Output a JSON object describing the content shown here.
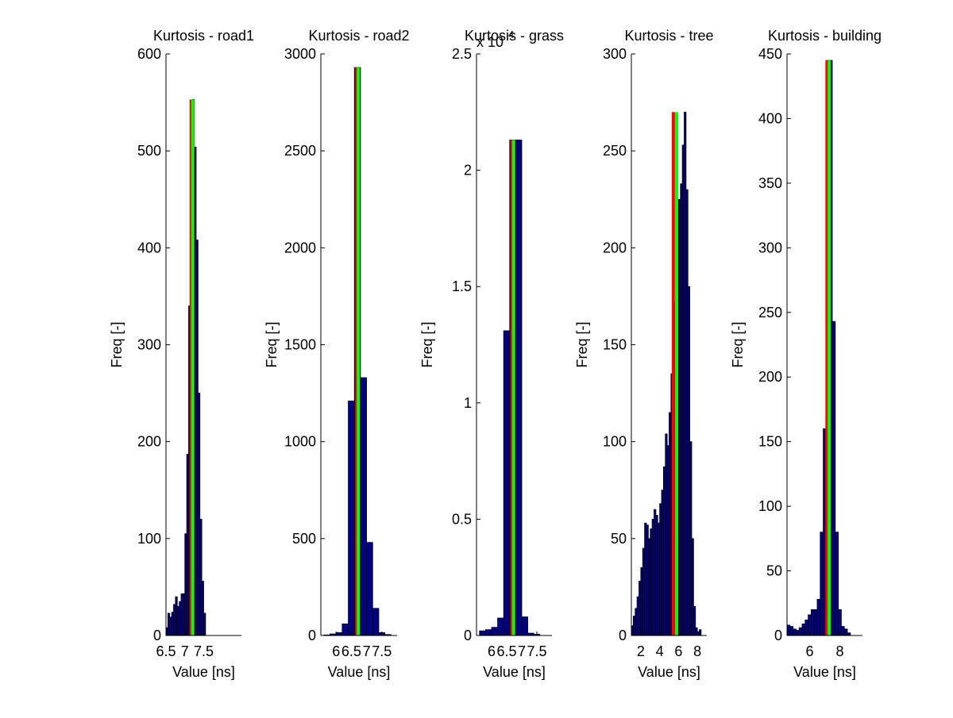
{
  "figure": {
    "background": "#ffffff"
  },
  "colors": {
    "bar": "#000080",
    "bar_edge": "#000000",
    "median_line": "#ff0000",
    "mean_line": "#00ff00"
  },
  "chart_data": [
    {
      "type": "bar",
      "title": "Kurtosis - road1",
      "xlabel": "Value [ns]",
      "ylabel": "Freq [-]",
      "xlim": [
        6.5,
        8.5
      ],
      "ylim": [
        0,
        600
      ],
      "xticks": [
        6.5,
        7,
        7.5
      ],
      "xtick_labels": [
        "6.5",
        "7",
        "7.5"
      ],
      "yticks": [
        0,
        100,
        200,
        300,
        400,
        500,
        600
      ],
      "ytick_labels": [
        "0",
        "100",
        "200",
        "300",
        "400",
        "500",
        "600"
      ],
      "bin_width": 0.05,
      "bins": [
        [
          6.5,
          8
        ],
        [
          6.55,
          23
        ],
        [
          6.6,
          19
        ],
        [
          6.65,
          24
        ],
        [
          6.7,
          32
        ],
        [
          6.75,
          40
        ],
        [
          6.8,
          30
        ],
        [
          6.85,
          35
        ],
        [
          6.9,
          43
        ],
        [
          6.95,
          43
        ],
        [
          7.0,
          105
        ],
        [
          7.05,
          187
        ],
        [
          7.1,
          340
        ],
        [
          7.15,
          435
        ],
        [
          7.2,
          553
        ],
        [
          7.25,
          504
        ],
        [
          7.3,
          408
        ],
        [
          7.35,
          250
        ],
        [
          7.4,
          120
        ],
        [
          7.45,
          56
        ],
        [
          7.5,
          23
        ]
      ],
      "markers": {
        "red_x": 7.17,
        "green_x": 7.21,
        "height": 553
      }
    },
    {
      "type": "bar",
      "title": "Kurtosis - road2",
      "xlabel": "Value [ns]",
      "ylabel": "Freq [-]",
      "xlim": [
        5.5,
        8
      ],
      "ylim": [
        0,
        3000
      ],
      "xticks": [
        6,
        6.5,
        7,
        7.5
      ],
      "xtick_labels": [
        "6",
        "6.5",
        "7",
        "7.5"
      ],
      "yticks": [
        0,
        500,
        1000,
        1500,
        2000,
        2500,
        3000
      ],
      "ytick_labels": [
        "0",
        "500",
        "1000",
        "1500",
        "2000",
        "2500",
        "3000"
      ],
      "bin_width": 0.2,
      "bins": [
        [
          5.6,
          3
        ],
        [
          5.8,
          8
        ],
        [
          6.0,
          15
        ],
        [
          6.2,
          60
        ],
        [
          6.4,
          1210
        ],
        [
          6.6,
          2930
        ],
        [
          6.8,
          1330
        ],
        [
          7.0,
          480
        ],
        [
          7.2,
          140
        ],
        [
          7.4,
          15
        ],
        [
          7.6,
          5
        ]
      ],
      "markers": {
        "red_x": 6.68,
        "green_x": 6.73,
        "height": 2930
      }
    },
    {
      "type": "bar",
      "title": "Kurtosis - grass",
      "axis_exponent_label": "x 10",
      "axis_exponent_power": "4",
      "xlabel": "Value [ns]",
      "ylabel": "Freq [-]",
      "xlim": [
        5.5,
        8
      ],
      "ylim": [
        0,
        2.5
      ],
      "xticks": [
        6,
        6.5,
        7,
        7.5
      ],
      "xtick_labels": [
        "6",
        "6.5",
        "7",
        "7.5"
      ],
      "yticks": [
        0,
        0.5,
        1,
        1.5,
        2,
        2.5
      ],
      "ytick_labels": [
        "0",
        "0.5",
        "1",
        "1.5",
        "2",
        "2.5"
      ],
      "bin_width": 0.2,
      "bins": [
        [
          5.6,
          0.02
        ],
        [
          5.8,
          0.025
        ],
        [
          6.0,
          0.035
        ],
        [
          6.2,
          0.075
        ],
        [
          6.4,
          1.31
        ],
        [
          6.6,
          2.13
        ],
        [
          6.8,
          2.13
        ],
        [
          7.0,
          0.08
        ],
        [
          7.2,
          0.01
        ],
        [
          7.4,
          0.005
        ]
      ],
      "markers": {
        "red_x": 6.68,
        "green_x": 6.73,
        "height": 2.13
      }
    },
    {
      "type": "bar",
      "title": "Kurtosis - tree",
      "xlabel": "Value [ns]",
      "ylabel": "Freq [-]",
      "xlim": [
        1,
        9
      ],
      "ylim": [
        0,
        300
      ],
      "xticks": [
        2,
        4,
        6,
        8
      ],
      "xtick_labels": [
        "2",
        "4",
        "6",
        "8"
      ],
      "yticks": [
        0,
        50,
        100,
        150,
        200,
        250,
        300
      ],
      "ytick_labels": [
        "0",
        "50",
        "100",
        "150",
        "200",
        "250",
        "300"
      ],
      "bin_width": 0.2,
      "bins": [
        [
          1.0,
          5
        ],
        [
          1.2,
          10
        ],
        [
          1.4,
          14
        ],
        [
          1.6,
          20
        ],
        [
          1.8,
          28
        ],
        [
          2.0,
          35
        ],
        [
          2.2,
          45
        ],
        [
          2.4,
          58
        ],
        [
          2.6,
          57
        ],
        [
          2.8,
          50
        ],
        [
          3.0,
          55
        ],
        [
          3.2,
          60
        ],
        [
          3.4,
          65
        ],
        [
          3.6,
          62
        ],
        [
          3.8,
          58
        ],
        [
          4.0,
          68
        ],
        [
          4.2,
          75
        ],
        [
          4.4,
          87
        ],
        [
          4.6,
          104
        ],
        [
          4.8,
          98
        ],
        [
          5.0,
          115
        ],
        [
          5.2,
          135
        ],
        [
          5.4,
          150
        ],
        [
          5.6,
          172
        ],
        [
          5.8,
          200
        ],
        [
          6.0,
          225
        ],
        [
          6.2,
          233
        ],
        [
          6.4,
          253
        ],
        [
          6.6,
          270
        ],
        [
          6.8,
          230
        ],
        [
          7.0,
          180
        ],
        [
          7.2,
          100
        ],
        [
          7.4,
          50
        ],
        [
          7.6,
          15
        ],
        [
          7.8,
          4
        ],
        [
          8.0,
          2
        ],
        [
          8.2,
          3
        ]
      ],
      "markers": {
        "red_x": 5.45,
        "green_x": 5.8,
        "height": 270
      }
    },
    {
      "type": "bar",
      "title": "Kurtosis - building",
      "xlabel": "Value [ns]",
      "ylabel": "Freq [-]",
      "xlim": [
        4.5,
        9.5
      ],
      "ylim": [
        0,
        450
      ],
      "xticks": [
        6,
        8
      ],
      "xtick_labels": [
        "6",
        "8"
      ],
      "yticks": [
        0,
        50,
        100,
        150,
        200,
        250,
        300,
        350,
        400,
        450
      ],
      "ytick_labels": [
        "0",
        "50",
        "100",
        "150",
        "200",
        "250",
        "300",
        "350",
        "400",
        "450"
      ],
      "bin_width": 0.2,
      "bins": [
        [
          4.5,
          8
        ],
        [
          4.7,
          7
        ],
        [
          4.9,
          5
        ],
        [
          5.1,
          4
        ],
        [
          5.3,
          6
        ],
        [
          5.5,
          9
        ],
        [
          5.7,
          12
        ],
        [
          5.9,
          16
        ],
        [
          6.1,
          20
        ],
        [
          6.3,
          20
        ],
        [
          6.5,
          28
        ],
        [
          6.7,
          80
        ],
        [
          6.9,
          160
        ],
        [
          7.1,
          445
        ],
        [
          7.3,
          445
        ],
        [
          7.5,
          243
        ],
        [
          7.7,
          80
        ],
        [
          7.9,
          20
        ],
        [
          8.1,
          7
        ],
        [
          8.3,
          5
        ],
        [
          8.5,
          2
        ]
      ],
      "markers": {
        "red_x": 7.15,
        "green_x": 7.3,
        "height": 445
      }
    }
  ]
}
